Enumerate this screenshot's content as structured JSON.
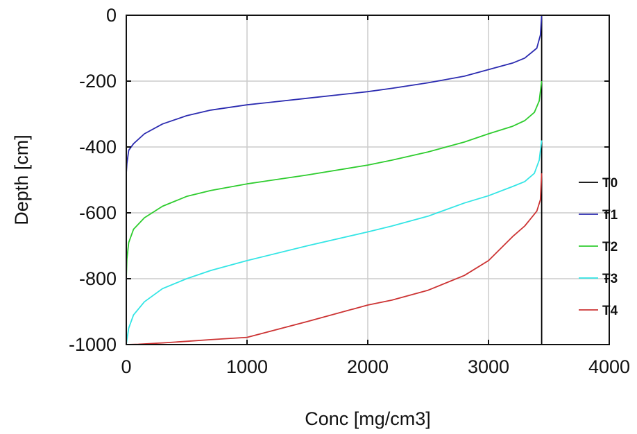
{
  "chart_data": {
    "type": "line",
    "title": "",
    "xlabel": "Conc [mg/cm3]",
    "ylabel": "Depth [cm]",
    "xlim": [
      0,
      4000
    ],
    "ylim": [
      -1000,
      0
    ],
    "xticks": [
      0,
      1000,
      2000,
      3000,
      4000
    ],
    "yticks": [
      0,
      -200,
      -400,
      -600,
      -800,
      -1000
    ],
    "grid": true,
    "legend_position": "right",
    "series": [
      {
        "name": "T0",
        "color": "#000000",
        "points": [
          [
            3440,
            0
          ],
          [
            3440,
            -1000
          ]
        ]
      },
      {
        "name": "T1",
        "color": "#2b2bb0",
        "points": [
          [
            3440,
            0
          ],
          [
            3430,
            -60
          ],
          [
            3400,
            -100
          ],
          [
            3300,
            -130
          ],
          [
            3200,
            -145
          ],
          [
            3000,
            -165
          ],
          [
            2800,
            -185
          ],
          [
            2500,
            -205
          ],
          [
            2200,
            -222
          ],
          [
            2000,
            -232
          ],
          [
            1500,
            -252
          ],
          [
            1000,
            -272
          ],
          [
            700,
            -288
          ],
          [
            500,
            -305
          ],
          [
            300,
            -330
          ],
          [
            150,
            -360
          ],
          [
            60,
            -390
          ],
          [
            20,
            -410
          ],
          [
            5,
            -450
          ],
          [
            0,
            -480
          ]
        ]
      },
      {
        "name": "T2",
        "color": "#2ecc2e",
        "points": [
          [
            3440,
            -200
          ],
          [
            3420,
            -260
          ],
          [
            3380,
            -295
          ],
          [
            3300,
            -320
          ],
          [
            3200,
            -337
          ],
          [
            3000,
            -360
          ],
          [
            2800,
            -385
          ],
          [
            2500,
            -415
          ],
          [
            2200,
            -440
          ],
          [
            2000,
            -455
          ],
          [
            1500,
            -485
          ],
          [
            1000,
            -512
          ],
          [
            700,
            -532
          ],
          [
            500,
            -550
          ],
          [
            300,
            -580
          ],
          [
            150,
            -615
          ],
          [
            60,
            -650
          ],
          [
            20,
            -690
          ],
          [
            5,
            -740
          ],
          [
            0,
            -800
          ]
        ]
      },
      {
        "name": "T3",
        "color": "#33e5e5",
        "points": [
          [
            3440,
            -380
          ],
          [
            3420,
            -440
          ],
          [
            3380,
            -480
          ],
          [
            3300,
            -505
          ],
          [
            3200,
            -520
          ],
          [
            3000,
            -548
          ],
          [
            2800,
            -570
          ],
          [
            2500,
            -610
          ],
          [
            2200,
            -640
          ],
          [
            2000,
            -658
          ],
          [
            1500,
            -700
          ],
          [
            1000,
            -745
          ],
          [
            700,
            -775
          ],
          [
            500,
            -800
          ],
          [
            300,
            -830
          ],
          [
            150,
            -870
          ],
          [
            60,
            -910
          ],
          [
            20,
            -950
          ],
          [
            5,
            -985
          ],
          [
            0,
            -1000
          ]
        ]
      },
      {
        "name": "T4",
        "color": "#cc3333",
        "points": [
          [
            3440,
            -480
          ],
          [
            3430,
            -560
          ],
          [
            3400,
            -595
          ],
          [
            3300,
            -640
          ],
          [
            3200,
            -672
          ],
          [
            3000,
            -745
          ],
          [
            2800,
            -790
          ],
          [
            2500,
            -835
          ],
          [
            2200,
            -865
          ],
          [
            2000,
            -880
          ],
          [
            1500,
            -930
          ],
          [
            1000,
            -978
          ],
          [
            700,
            -985
          ],
          [
            500,
            -990
          ],
          [
            300,
            -995
          ],
          [
            100,
            -999
          ],
          [
            0,
            -1000
          ]
        ]
      }
    ]
  }
}
